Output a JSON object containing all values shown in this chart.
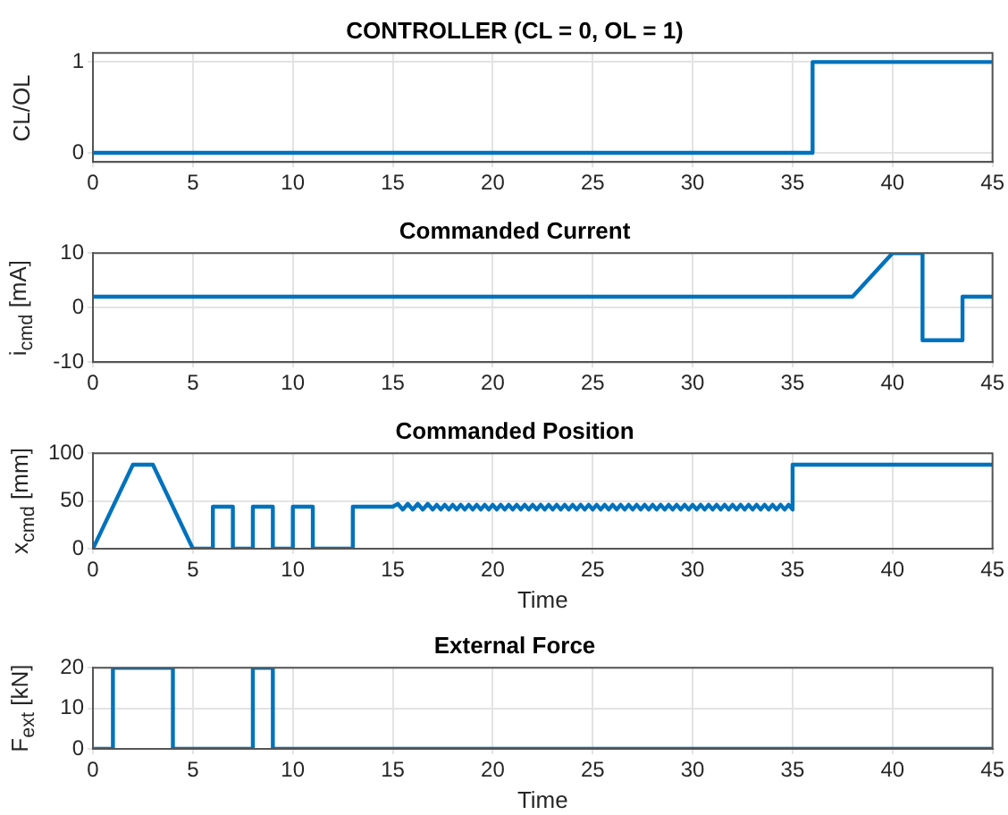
{
  "chart_data": [
    {
      "type": "line",
      "title": "CONTROLLER (CL = 0, OL = 1)",
      "ylabel": "CL/OL",
      "xlim": [
        0,
        45
      ],
      "xticks": [
        0,
        5,
        10,
        15,
        20,
        25,
        30,
        35,
        40,
        45
      ],
      "ylim": [
        -0.1,
        1.1
      ],
      "yticks": [
        0,
        1
      ],
      "grid": true,
      "legend": false,
      "marker": "none",
      "series": [
        {
          "color": "#0072bd",
          "x": [
            0,
            36,
            36,
            45
          ],
          "values": [
            0,
            0,
            1,
            1
          ]
        }
      ]
    },
    {
      "type": "line",
      "title": "Commanded Current",
      "ylabel": "i$_{cmd}$ [mA]",
      "xlim": [
        0,
        45
      ],
      "xticks": [
        0,
        5,
        10,
        15,
        20,
        25,
        30,
        35,
        40,
        45
      ],
      "ylim": [
        -10,
        10
      ],
      "yticks": [
        -10,
        0,
        10
      ],
      "grid": true,
      "legend": false,
      "marker": "none",
      "series": [
        {
          "color": "#0072bd",
          "x": [
            0,
            38,
            40,
            41.5,
            41.5,
            43.5,
            43.5,
            45
          ],
          "values": [
            2,
            2,
            10,
            10,
            -6,
            -6,
            2,
            2
          ]
        }
      ]
    },
    {
      "type": "line",
      "title": "Commanded Position",
      "xlabel": "Time",
      "ylabel": "x$_{cmd}$ [mm]",
      "xlim": [
        0,
        45
      ],
      "xticks": [
        0,
        5,
        10,
        15,
        20,
        25,
        30,
        35,
        40,
        45
      ],
      "ylim": [
        0,
        100
      ],
      "yticks": [
        0,
        50,
        100
      ],
      "grid": true,
      "legend": false,
      "marker": "none",
      "series": [
        {
          "color": "#0072bd",
          "x": [
            0,
            2,
            3,
            5,
            6,
            6,
            7,
            7,
            8,
            8,
            9,
            9,
            10,
            10,
            11,
            11,
            13,
            13,
            15,
            15.25,
            15.5,
            15.75,
            16,
            16.25,
            16.5,
            16.75,
            17,
            17.2,
            17.4,
            17.6,
            17.8,
            18,
            18.2,
            18.4,
            18.6,
            18.8,
            19,
            19.2,
            19.4,
            19.6,
            19.8,
            20,
            20.2,
            20.4,
            20.6,
            20.8,
            21,
            21.2,
            21.4,
            21.6,
            21.8,
            22,
            22.2,
            22.4,
            22.6,
            22.8,
            23,
            23.2,
            23.4,
            23.6,
            23.8,
            24,
            24.2,
            24.4,
            24.6,
            24.8,
            25,
            25.2,
            25.4,
            25.6,
            25.8,
            26,
            26.2,
            26.4,
            26.6,
            26.8,
            27,
            27.2,
            27.4,
            27.6,
            27.8,
            28,
            28.2,
            28.4,
            28.6,
            28.8,
            29,
            29.2,
            29.4,
            29.6,
            29.8,
            30,
            30.2,
            30.4,
            30.6,
            30.8,
            31,
            31.2,
            31.4,
            31.6,
            31.8,
            32,
            32.2,
            32.4,
            32.6,
            32.8,
            33,
            33.2,
            33.4,
            33.6,
            33.8,
            34,
            34.2,
            34.4,
            34.6,
            34.8,
            35,
            35,
            45
          ],
          "values": [
            0,
            88,
            88,
            0,
            0,
            44,
            44,
            0,
            0,
            44,
            44,
            0,
            0,
            44,
            44,
            0,
            0,
            44,
            44,
            47,
            41,
            47,
            41,
            47,
            41,
            47,
            41,
            46,
            41,
            46,
            41,
            46,
            41,
            46,
            41,
            46,
            41,
            46,
            41,
            46,
            41,
            46,
            41,
            46,
            41,
            46,
            41,
            46,
            41,
            46,
            41,
            46,
            41,
            46,
            41,
            46,
            41,
            46,
            41,
            46,
            41,
            46,
            41,
            46,
            41,
            46,
            41,
            46,
            41,
            46,
            41,
            46,
            41,
            46,
            41,
            46,
            41,
            46,
            41,
            46,
            41,
            46,
            41,
            46,
            41,
            46,
            41,
            46,
            41,
            46,
            41,
            46,
            41,
            46,
            41,
            46,
            41,
            46,
            41,
            46,
            41,
            46,
            41,
            46,
            41,
            46,
            41,
            46,
            41,
            46,
            41,
            46,
            41,
            46,
            41,
            46,
            41,
            88,
            88
          ]
        }
      ]
    },
    {
      "type": "line",
      "title": "External Force",
      "xlabel": "Time",
      "ylabel": "F$_{ext}$ [kN]",
      "xlim": [
        0,
        45
      ],
      "xticks": [
        0,
        5,
        10,
        15,
        20,
        25,
        30,
        35,
        40,
        45
      ],
      "ylim": [
        0,
        20
      ],
      "yticks": [
        0,
        10,
        20
      ],
      "grid": true,
      "legend": false,
      "marker": "none",
      "series": [
        {
          "color": "#0072bd",
          "x": [
            0,
            1,
            1,
            4,
            4,
            8,
            8,
            9,
            9,
            45
          ],
          "values": [
            0,
            0,
            20,
            20,
            0,
            0,
            20,
            20,
            0,
            0
          ]
        }
      ]
    }
  ]
}
